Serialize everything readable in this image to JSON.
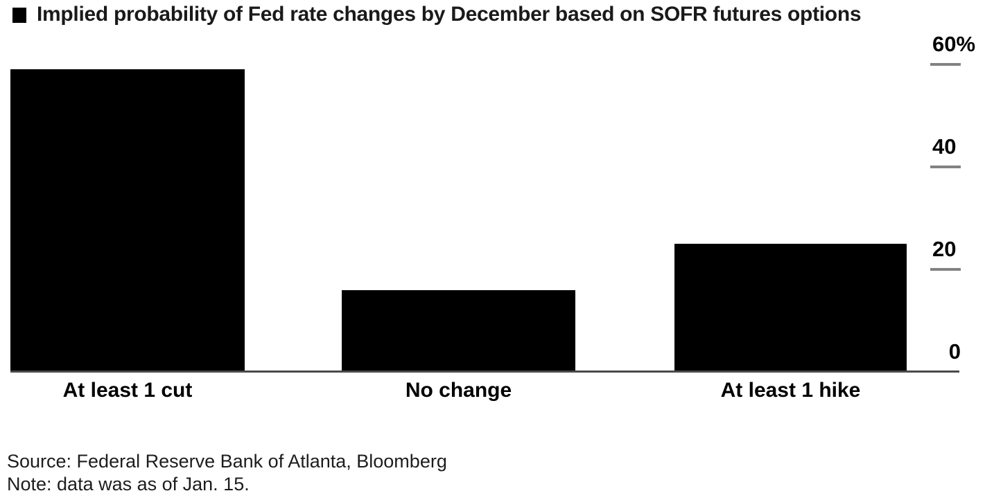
{
  "title": {
    "legend_marker": "filled-square-icon",
    "text": "Implied probability of Fed rate changes by December based on SOFR futures options"
  },
  "chart_data": {
    "type": "bar",
    "title": "Implied probability of Fed rate changes by December based on SOFR futures options",
    "categories": [
      "At least 1 cut",
      "No change",
      "At least 1 hike"
    ],
    "values": [
      59,
      16,
      25
    ],
    "unit": "%",
    "xlabel": "",
    "ylabel": "",
    "ylim": [
      0,
      60
    ],
    "yticks": [
      {
        "value": 60,
        "label": "60%"
      },
      {
        "value": 40,
        "label": "40"
      },
      {
        "value": 20,
        "label": "20"
      },
      {
        "value": 0,
        "label": "0"
      }
    ],
    "axis_side": "right",
    "grid": false,
    "legend_position": "top-left",
    "bar_color": "#000000"
  },
  "footer": {
    "source": "Source: Federal Reserve Bank of Atlanta, Bloomberg",
    "note": "Note: data was as of Jan. 15."
  },
  "colors": {
    "bar": "#000000",
    "tick": "#828282",
    "axis_line": "#4a4a4a",
    "text": "#000000",
    "background": "#ffffff"
  }
}
